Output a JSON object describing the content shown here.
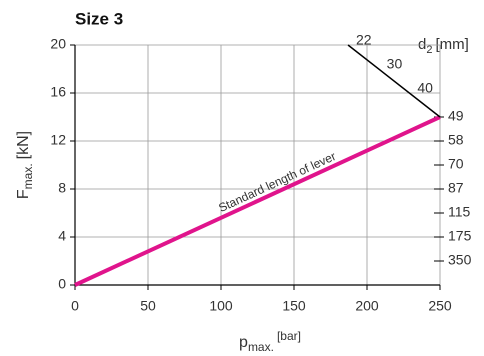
{
  "chart_data": {
    "type": "line",
    "title": "Size 3",
    "x_label": {
      "main": "p",
      "sub": "max.",
      "sup": "[bar]"
    },
    "y_label": {
      "main": "F",
      "sub": "max.",
      "unit": "[kN]"
    },
    "d2_label": {
      "main": "d",
      "sub": "2",
      "unit": "[mm]"
    },
    "annotation": "Standard length of lever",
    "xlim": [
      0,
      250
    ],
    "xticks": [
      0,
      50,
      100,
      150,
      200,
      250
    ],
    "ylim": [
      0,
      20
    ],
    "yticks": [
      0,
      4,
      8,
      12,
      16,
      20
    ],
    "grid": true,
    "series": [
      {
        "name": "Standard length of lever",
        "color": "#e0148c",
        "x": [
          0,
          250
        ],
        "values": [
          0,
          14
        ]
      },
      {
        "name": "d2",
        "color": "#000000",
        "x": [
          187,
          250
        ],
        "values": [
          20,
          14
        ]
      }
    ],
    "d2_scale": {
      "labels": [
        22,
        30,
        40,
        49,
        58,
        70,
        87,
        115,
        175,
        350
      ],
      "y": [
        20,
        18,
        16,
        14,
        12,
        10,
        8,
        6,
        4,
        2
      ]
    }
  }
}
